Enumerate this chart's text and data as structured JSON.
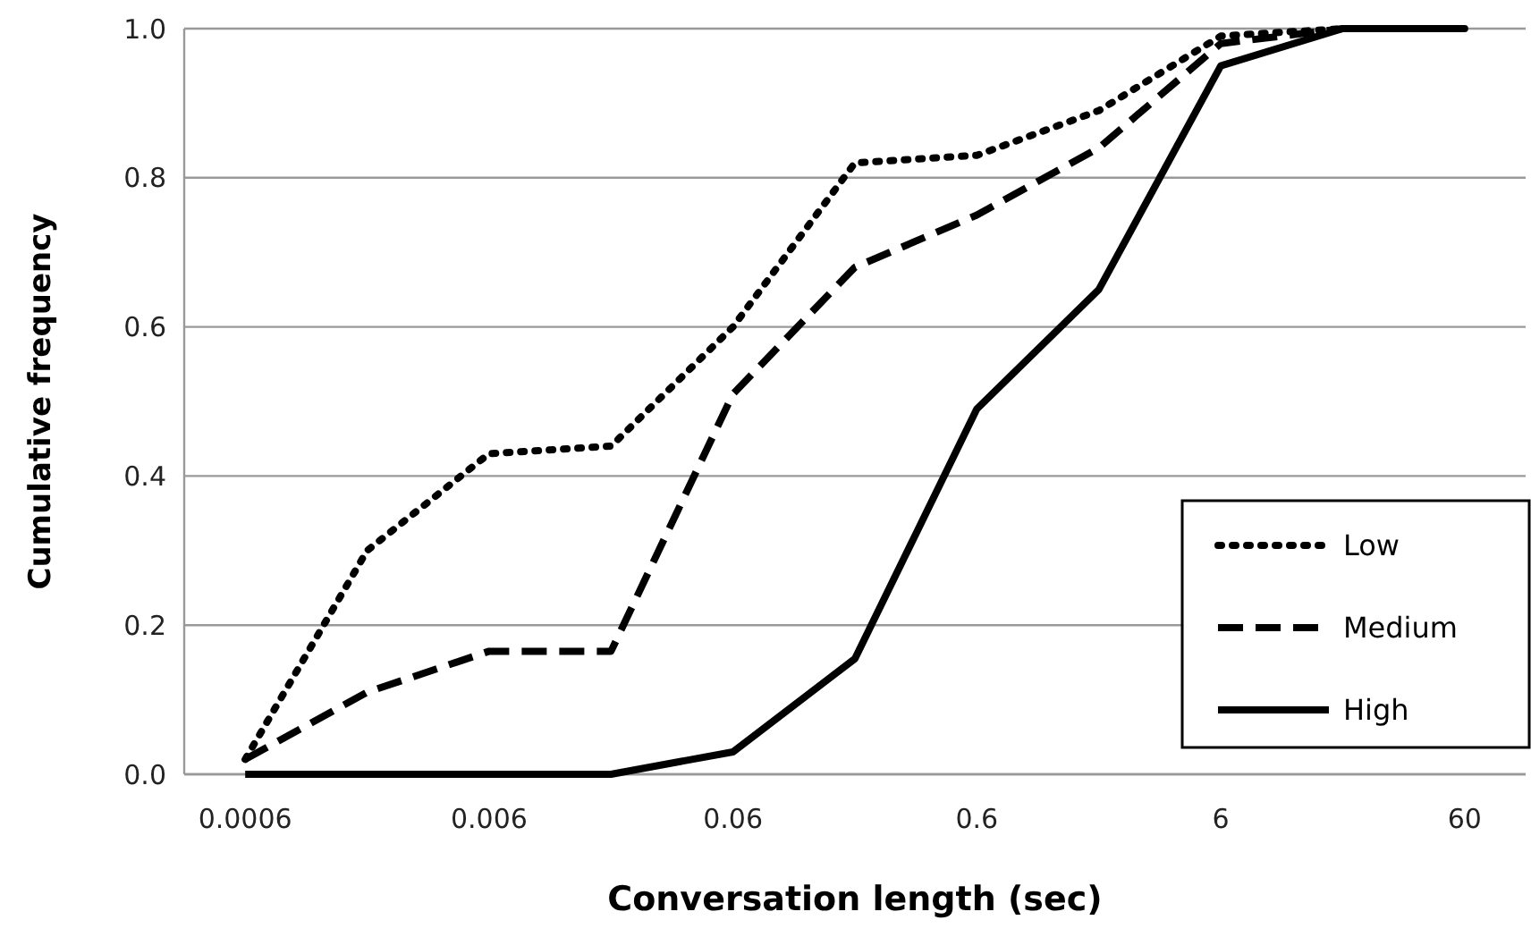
{
  "chart_data": {
    "type": "line",
    "xlabel": "Conversation length (sec)",
    "ylabel": "Cumulative frequency",
    "categories": [
      "0.0006",
      null,
      "0.006",
      null,
      "0.06",
      null,
      "0.6",
      null,
      "6",
      null,
      "60"
    ],
    "series": [
      {
        "name": "Low",
        "color": "#000000",
        "line_style": "dotted",
        "values": [
          0.02,
          0.3,
          0.43,
          0.44,
          0.6,
          0.82,
          0.83,
          0.89,
          0.99,
          1.0,
          1.0
        ]
      },
      {
        "name": "Medium",
        "color": "#000000",
        "line_style": "dashed",
        "values": [
          0.02,
          0.11,
          0.165,
          0.165,
          0.51,
          0.68,
          0.75,
          0.84,
          0.98,
          1.0,
          1.0
        ]
      },
      {
        "name": "High",
        "color": "#000000",
        "line_style": "solid",
        "values": [
          0.0,
          0.0,
          0.0,
          0.0,
          0.03,
          0.155,
          0.49,
          0.65,
          0.95,
          1.0,
          1.0
        ]
      }
    ],
    "ylim": [
      0,
      1
    ],
    "yticks": [
      {
        "value": 0,
        "label": "0.0"
      },
      {
        "value": 0.2,
        "label": "0.2"
      },
      {
        "value": 0.4,
        "label": "0.4"
      },
      {
        "value": 0.6,
        "label": "0.6"
      },
      {
        "value": 0.8,
        "label": "0.8"
      },
      {
        "value": 1,
        "label": "1.0"
      }
    ],
    "grid": "y",
    "legend": "bottom right"
  }
}
